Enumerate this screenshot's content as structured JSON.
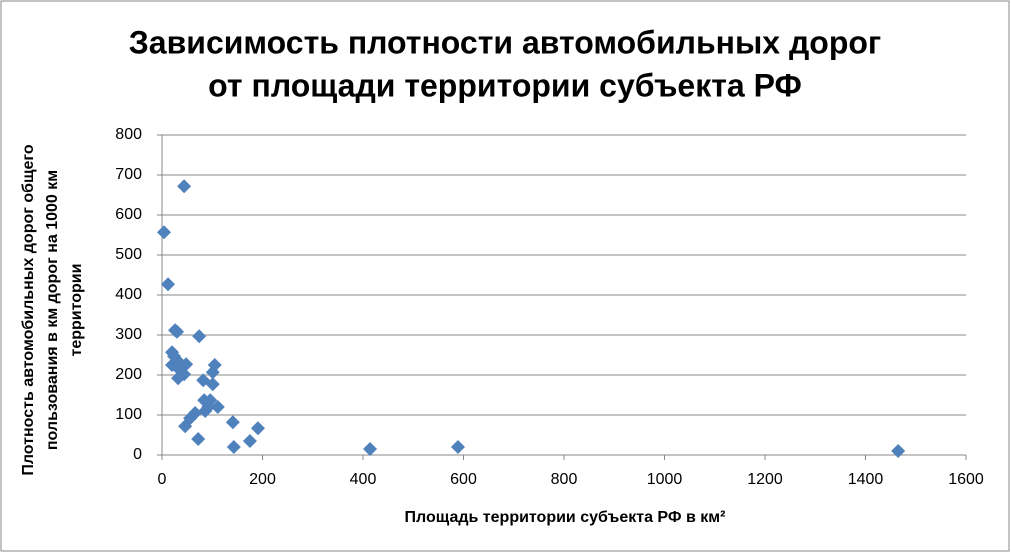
{
  "chart_data": {
    "type": "scatter",
    "title": [
      "Зависимость плотности автомобильных дорог",
      "от площади территории субъекта РФ"
    ],
    "x_label": "Площадь территории субъекта РФ в км²",
    "y_label": [
      "Плотность автомобильных дорог общего",
      "пользования в км дорог на 1000 км",
      "территории"
    ],
    "color": "#4f81bd",
    "grid": true,
    "xlim": [
      0,
      1600
    ],
    "xticks": [
      0,
      200,
      400,
      600,
      800,
      1000,
      1200,
      1400,
      1600
    ],
    "ylim": [
      0,
      800
    ],
    "yticks": [
      0,
      100,
      200,
      300,
      400,
      500,
      600,
      700,
      800
    ],
    "x": [
      4,
      12,
      44,
      26,
      30,
      74,
      20,
      24,
      30,
      20,
      48,
      105,
      36,
      44,
      101,
      32,
      82,
      101,
      84,
      96,
      111,
      92,
      86,
      66,
      56,
      46,
      141,
      191,
      72,
      175,
      143,
      414,
      589,
      1465
    ],
    "values": [
      557,
      427,
      672,
      312,
      308,
      297,
      257,
      247,
      237,
      225,
      227,
      225,
      212,
      202,
      207,
      192,
      187,
      177,
      137,
      137,
      120,
      120,
      110,
      105,
      92,
      72,
      82,
      67,
      40,
      35,
      20,
      15,
      20,
      10
    ]
  }
}
